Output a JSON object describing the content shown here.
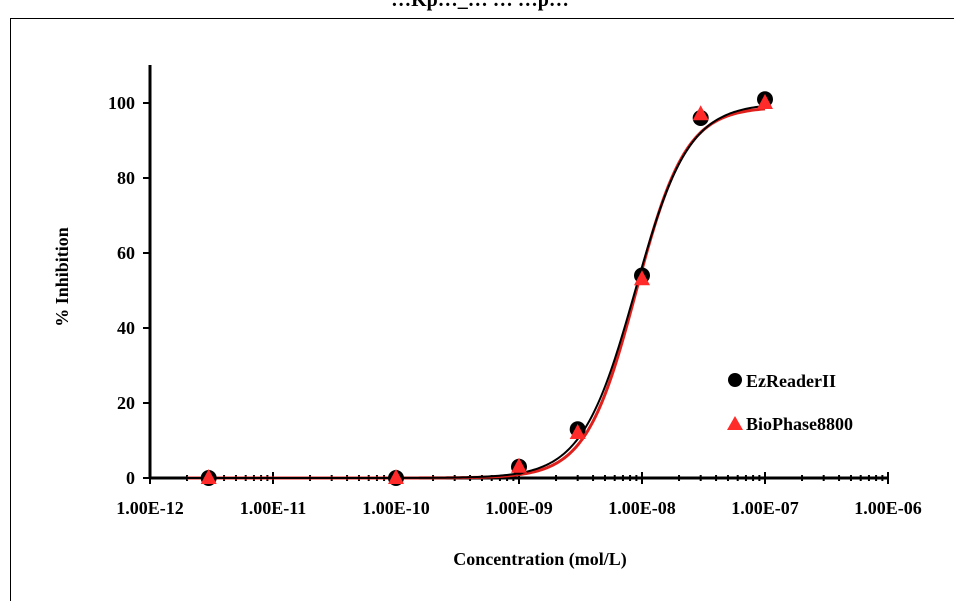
{
  "chart_data": {
    "type": "scatter",
    "title": "…Kp…_… … …p…",
    "xlabel": "Concentration (mol/L)",
    "ylabel": "% Inhibition",
    "xscale": "log",
    "xlim": [
      1e-12,
      1e-06
    ],
    "ylim": [
      0,
      110
    ],
    "x_tick_labels": [
      "1.00E-12",
      "1.00E-11",
      "1.00E-10",
      "1.00E-09",
      "1.00E-08",
      "1.00E-07",
      "1.00E-06"
    ],
    "y_tick_labels": [
      "0",
      "20",
      "40",
      "60",
      "80",
      "100"
    ],
    "legend_position": "right",
    "grid": false,
    "series": [
      {
        "name": "EzReaderII",
        "marker": "circle",
        "color": "#000000",
        "curve_color": "#000000",
        "x": [
          3e-12,
          1e-10,
          1e-09,
          3e-09,
          1e-08,
          3e-08,
          1e-07
        ],
        "y": [
          0,
          0,
          3,
          13,
          54,
          96,
          101
        ]
      },
      {
        "name": "BioPhase8800",
        "marker": "triangle",
        "color": "#ff2a2a",
        "curve_color": "#e0201c",
        "x": [
          3e-12,
          1e-10,
          1e-09,
          3e-09,
          1e-08,
          3e-08,
          1e-07
        ],
        "y": [
          0,
          0,
          3,
          12,
          53,
          97,
          100
        ]
      }
    ]
  }
}
